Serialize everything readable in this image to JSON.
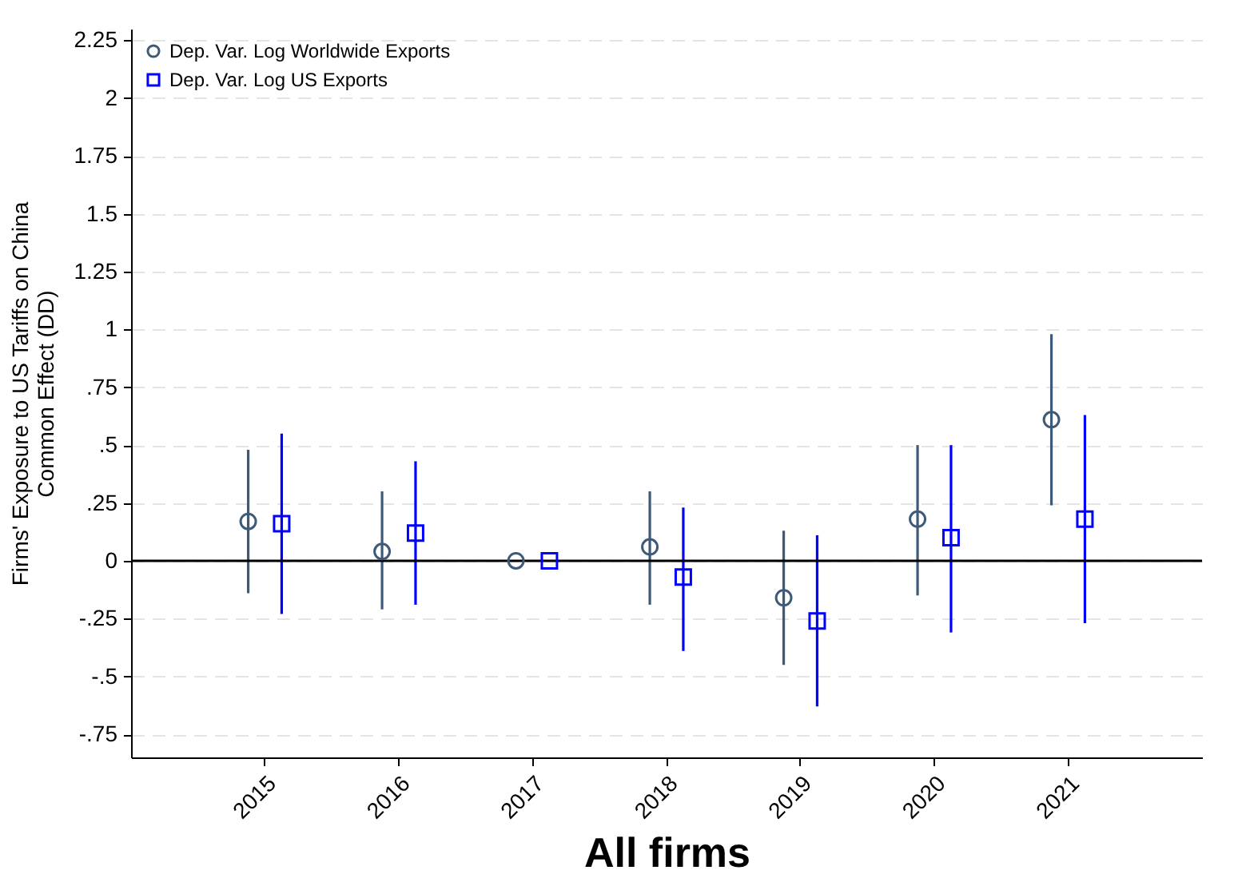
{
  "chart_data": {
    "type": "scatter",
    "xlabel": "All firms",
    "ylabel": "Firms' Exposure to US Tariffs on China\nCommon Effect (DD)",
    "categories": [
      "2015",
      "2016",
      "2017",
      "2018",
      "2019",
      "2020",
      "2021"
    ],
    "series": [
      {
        "name": "Dep. Var. Log Worldwide Exports",
        "color": "#3d5a78",
        "marker": "circle",
        "values": [
          0.17,
          0.04,
          0,
          0.06,
          -0.16,
          0.18,
          0.61
        ],
        "errors": [
          [
            -0.14,
            0.48
          ],
          [
            -0.21,
            0.3
          ],
          null,
          [
            -0.19,
            0.3
          ],
          [
            -0.45,
            0.13
          ],
          [
            -0.15,
            0.5
          ],
          [
            0.24,
            0.98
          ]
        ]
      },
      {
        "name": "Dep. Var. Log US Exports",
        "color": "#0000ff",
        "marker": "square",
        "values": [
          0.16,
          0.12,
          0,
          -0.07,
          -0.26,
          0.1,
          0.18
        ],
        "errors": [
          [
            -0.23,
            0.55
          ],
          [
            -0.19,
            0.43
          ],
          null,
          [
            -0.39,
            0.23
          ],
          [
            -0.63,
            0.11
          ],
          [
            -0.31,
            0.5
          ],
          [
            -0.27,
            0.63
          ]
        ]
      }
    ],
    "ylim": [
      -0.85,
      2.3
    ],
    "yticks": [
      {
        "value": -0.75,
        "label": "-.75"
      },
      {
        "value": -0.5,
        "label": "-.5"
      },
      {
        "value": -0.25,
        "label": "-.25"
      },
      0,
      {
        "value": 0.25,
        "label": ".25"
      },
      {
        "value": 0.5,
        "label": ".5"
      },
      {
        "value": 0.75,
        "label": ".75"
      },
      1,
      1.25,
      1.5,
      1.75,
      2,
      2.25
    ],
    "grid": "y",
    "legend": "top left",
    "ref_lines": [
      {
        "axis": "y",
        "value": 0,
        "color": "#000000"
      }
    ]
  }
}
